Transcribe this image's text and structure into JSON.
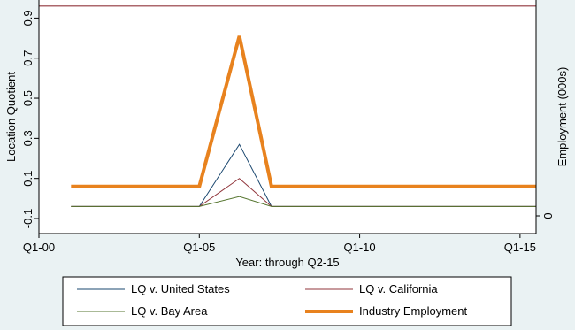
{
  "chart_data": {
    "type": "line",
    "title": "",
    "xlabel": "Year: through Q2-15",
    "ylabel": "Location Quotient",
    "y2label": "Employment (000s)",
    "x_ticks": [
      "Q1-00",
      "Q1-05",
      "Q1-10",
      "Q1-15"
    ],
    "x_tick_values": [
      2000,
      2005,
      2010,
      2015
    ],
    "xlim": [
      2000,
      2015.5
    ],
    "ylim": [
      -0.175,
      0.99
    ],
    "y_ticks": [
      -0.1,
      0.1,
      0.3,
      0.5,
      0.7,
      0.9
    ],
    "y_tick_labels": [
      "-0.1",
      "0.1",
      "0.3",
      "0.5",
      "0.7",
      "0.9"
    ],
    "y2_ticks": [
      0
    ],
    "y2_tick_labels": [
      "0"
    ],
    "grid": false,
    "legend_position": "bottom",
    "series": [
      {
        "name": "LQ v. United States",
        "color": "#1a476f",
        "x": [
          2001,
          2005,
          2006.25,
          2007.25,
          2015.5
        ],
        "y": [
          -0.04,
          -0.04,
          0.27,
          -0.04,
          -0.04
        ]
      },
      {
        "name": "LQ v. California",
        "color": "#90353b",
        "x": [
          2001,
          2005,
          2006.25,
          2007.25,
          2015.5
        ],
        "y": [
          -0.04,
          -0.04,
          0.1,
          -0.04,
          -0.04
        ],
        "extra": {
          "x": [
            2000,
            2015.5
          ],
          "y": [
            0.96,
            0.96
          ]
        }
      },
      {
        "name": "LQ v. Bay Area",
        "color": "#55752f",
        "x": [
          2001,
          2005,
          2006.25,
          2007.25,
          2015.5
        ],
        "y": [
          -0.04,
          -0.04,
          0.01,
          -0.04,
          -0.04
        ]
      },
      {
        "name": "Industry Employment",
        "color": "#e8821e",
        "x": [
          2001,
          2005,
          2006.25,
          2007.25,
          2015.5
        ],
        "y": [
          0.06,
          0.06,
          0.81,
          0.06,
          0.06
        ]
      }
    ]
  }
}
